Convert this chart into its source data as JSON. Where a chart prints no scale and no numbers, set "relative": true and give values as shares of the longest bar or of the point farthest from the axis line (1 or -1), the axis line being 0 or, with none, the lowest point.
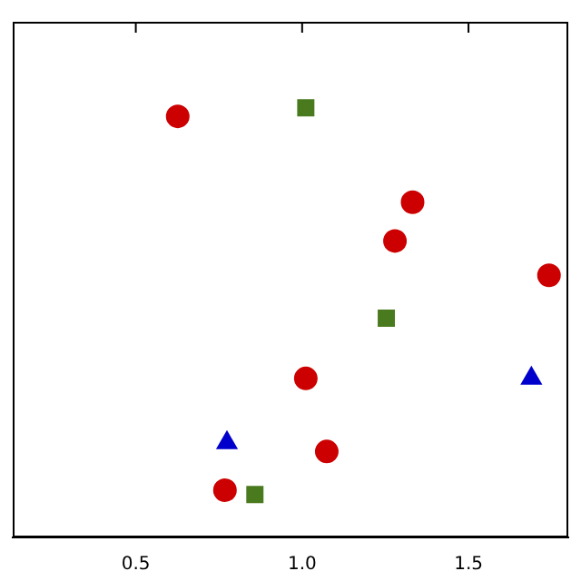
{
  "chart_data": {
    "type": "scatter",
    "relative": true,
    "grid": false,
    "legend": false,
    "xlim": [
      0.13,
      1.8
    ],
    "xticks": [
      {
        "value": 0.5,
        "label": "0.5"
      },
      {
        "value": 1,
        "label": "1.0"
      },
      {
        "value": 1.5,
        "label": "1.5"
      }
    ],
    "series": [
      {
        "color": "#cc0000",
        "marker": "circle",
        "x": [
          0.626,
          1.332,
          1.279,
          1.742,
          1.011,
          1.074,
          0.768
        ],
        "values": [
          0.98,
          0.78,
          0.69,
          0.61,
          0.37,
          0.2,
          0.11
        ]
      },
      {
        "color": "#4a7a1e",
        "marker": "square",
        "x": [
          1.011,
          1.253,
          0.858
        ],
        "values": [
          1,
          0.51,
          0.1
        ]
      },
      {
        "color": "#0000cc",
        "marker": "triangle",
        "x": [
          0.774,
          1.689
        ],
        "values": [
          0.22,
          0.37
        ]
      }
    ]
  }
}
